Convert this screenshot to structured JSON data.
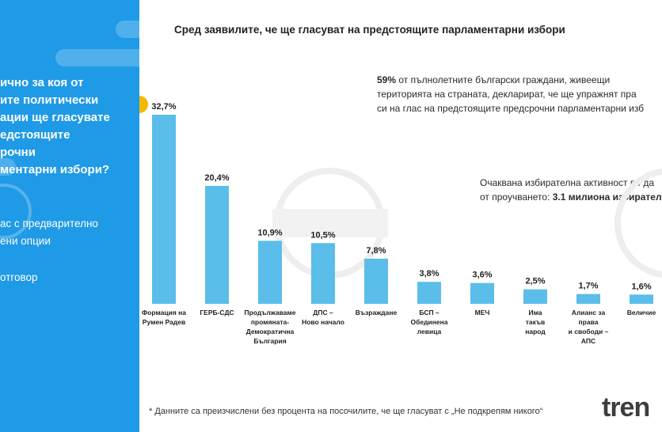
{
  "sidebar": {
    "question_lines": [
      "ично за коя от",
      "ите политически",
      "ации ще гласувате",
      "едстоящите",
      "рочни",
      "ментарни избори?"
    ],
    "option_lines": [
      "ас с предварително",
      "ени опции"
    ],
    "option2": "отговор"
  },
  "main": {
    "title": "Сред заявилите, че ще гласуват на предстоящите парламентарни избори",
    "info_pct": "59%",
    "info_line1_rest": " от пълнолетните български граждани, живеещи",
    "info_line2": "територията на страната, декларират, че ще упражнят пра",
    "info_line3": "си на глас на предстоящите предсрочни парламентарни изб",
    "turnout_line1": "Очаквана избирателна активност по да",
    "turnout_line2_prefix": "от проучването: ",
    "turnout_value": "3.1 милиона избирател",
    "footnote": "* Данните са преизчислени без процента на посочилите, че ще гласуват с „Не подкрепям никого“",
    "logo_text": "tren"
  },
  "colors": {
    "sidebar_blue": "#1f9ae6",
    "bar": "#5bbde9",
    "accent_dot": "#f5b800"
  },
  "chart_data": {
    "type": "bar",
    "title": "",
    "xlabel": "",
    "ylabel": "",
    "ylim": [
      0,
      35
    ],
    "categories": [
      [
        "Формация на",
        "Румен Радев"
      ],
      [
        "ГЕРБ-СДС"
      ],
      [
        "Продължаваме",
        "промяната-",
        "Демократична",
        "България"
      ],
      [
        "ДПС –",
        "Ново начало"
      ],
      [
        "Възраждане"
      ],
      [
        "БСП –",
        "Обединена",
        "левица"
      ],
      [
        "МЕЧ"
      ],
      [
        "Има",
        "такъв",
        "народ"
      ],
      [
        "Алианс за",
        "права",
        "и свободи –",
        "АПС"
      ],
      [
        "Величие"
      ]
    ],
    "values": [
      32.7,
      20.4,
      10.9,
      10.5,
      7.8,
      3.8,
      3.6,
      2.5,
      1.7,
      1.6
    ],
    "value_labels": [
      "32,7%",
      "20,4%",
      "10,9%",
      "10,5%",
      "7,8%",
      "3,8%",
      "3,6%",
      "2,5%",
      "1,7%",
      "1,6%"
    ]
  }
}
